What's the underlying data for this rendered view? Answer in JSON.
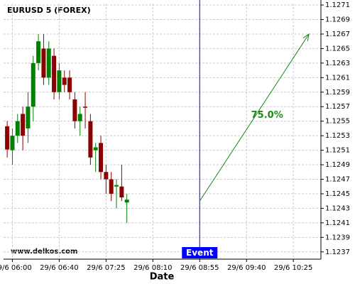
{
  "chart_data": {
    "type": "candlestick",
    "title": "EURUSD 5 (FOREX)",
    "x_label": "Date",
    "watermark": "www.delkos.com",
    "x": [
      0,
      1,
      2,
      3,
      4,
      5,
      6,
      7,
      8,
      9,
      10,
      11,
      12,
      13,
      14,
      15,
      16,
      17,
      18,
      19,
      20,
      21,
      22,
      23
    ],
    "xlim": [
      -0.7,
      60.3
    ],
    "xticks": [
      {
        "value": 1,
        "label": "29/6 06:00"
      },
      {
        "value": 10,
        "label": "29/6 06:40"
      },
      {
        "value": 19,
        "label": "29/6 07:25"
      },
      {
        "value": 28,
        "label": "29/6 08:10"
      },
      {
        "value": 37,
        "label": "29/6 08:55"
      },
      {
        "value": 46,
        "label": "29/6 09:40"
      },
      {
        "value": 55,
        "label": "29/6 10:25"
      }
    ],
    "ylim": [
      1.1236,
      1.12712
    ],
    "yticks": [
      1.1237,
      1.1239,
      1.1241,
      1.1243,
      1.1245,
      1.1247,
      1.1249,
      1.1251,
      1.1253,
      1.1255,
      1.1257,
      1.1259,
      1.1261,
      1.1263,
      1.1265,
      1.1267,
      1.1269,
      1.1271
    ],
    "grid": true,
    "up_color": "#008000",
    "down_color": "#8b0000",
    "open": [
      1.12543,
      1.1251,
      1.1253,
      1.1256,
      1.1254,
      1.1257,
      1.1263,
      1.1265,
      1.1261,
      1.1264,
      1.1259,
      1.1261,
      1.1261,
      1.1258,
      1.1255,
      1.1257,
      1.1255,
      1.1251,
      1.1252,
      1.1248,
      1.1247,
      1.1246,
      1.1246,
      1.12438
    ],
    "high": [
      1.1255,
      1.1254,
      1.1256,
      1.1257,
      1.1259,
      1.1264,
      1.1267,
      1.1267,
      1.1266,
      1.1265,
      1.1263,
      1.1262,
      1.1262,
      1.1259,
      1.1257,
      1.1259,
      1.1256,
      1.1252,
      1.1253,
      1.1249,
      1.1248,
      1.1247,
      1.1249,
      1.1245
    ],
    "low": [
      1.125,
      1.1249,
      1.1252,
      1.1251,
      1.1252,
      1.1255,
      1.1262,
      1.126,
      1.126,
      1.1258,
      1.1258,
      1.1259,
      1.1258,
      1.1254,
      1.1253,
      1.1254,
      1.1249,
      1.1248,
      1.1247,
      1.1245,
      1.1244,
      1.1243,
      1.1244,
      1.1241
    ],
    "close": [
      1.12511,
      1.1253,
      1.1255,
      1.1253,
      1.1257,
      1.1263,
      1.1266,
      1.1261,
      1.1265,
      1.1259,
      1.1262,
      1.126,
      1.1259,
      1.1255,
      1.1256,
      1.12569,
      1.125,
      1.12514,
      1.1248,
      1.1247,
      1.1245,
      1.12462,
      1.12445,
      1.12442
    ],
    "event": {
      "label": "Event",
      "x": 37,
      "color": "#0000ff"
    },
    "arrow": {
      "x": [
        37,
        58
      ],
      "y": [
        1.1244,
        1.1267
      ],
      "label": "75.0%",
      "color": "#1a8a1a"
    }
  }
}
